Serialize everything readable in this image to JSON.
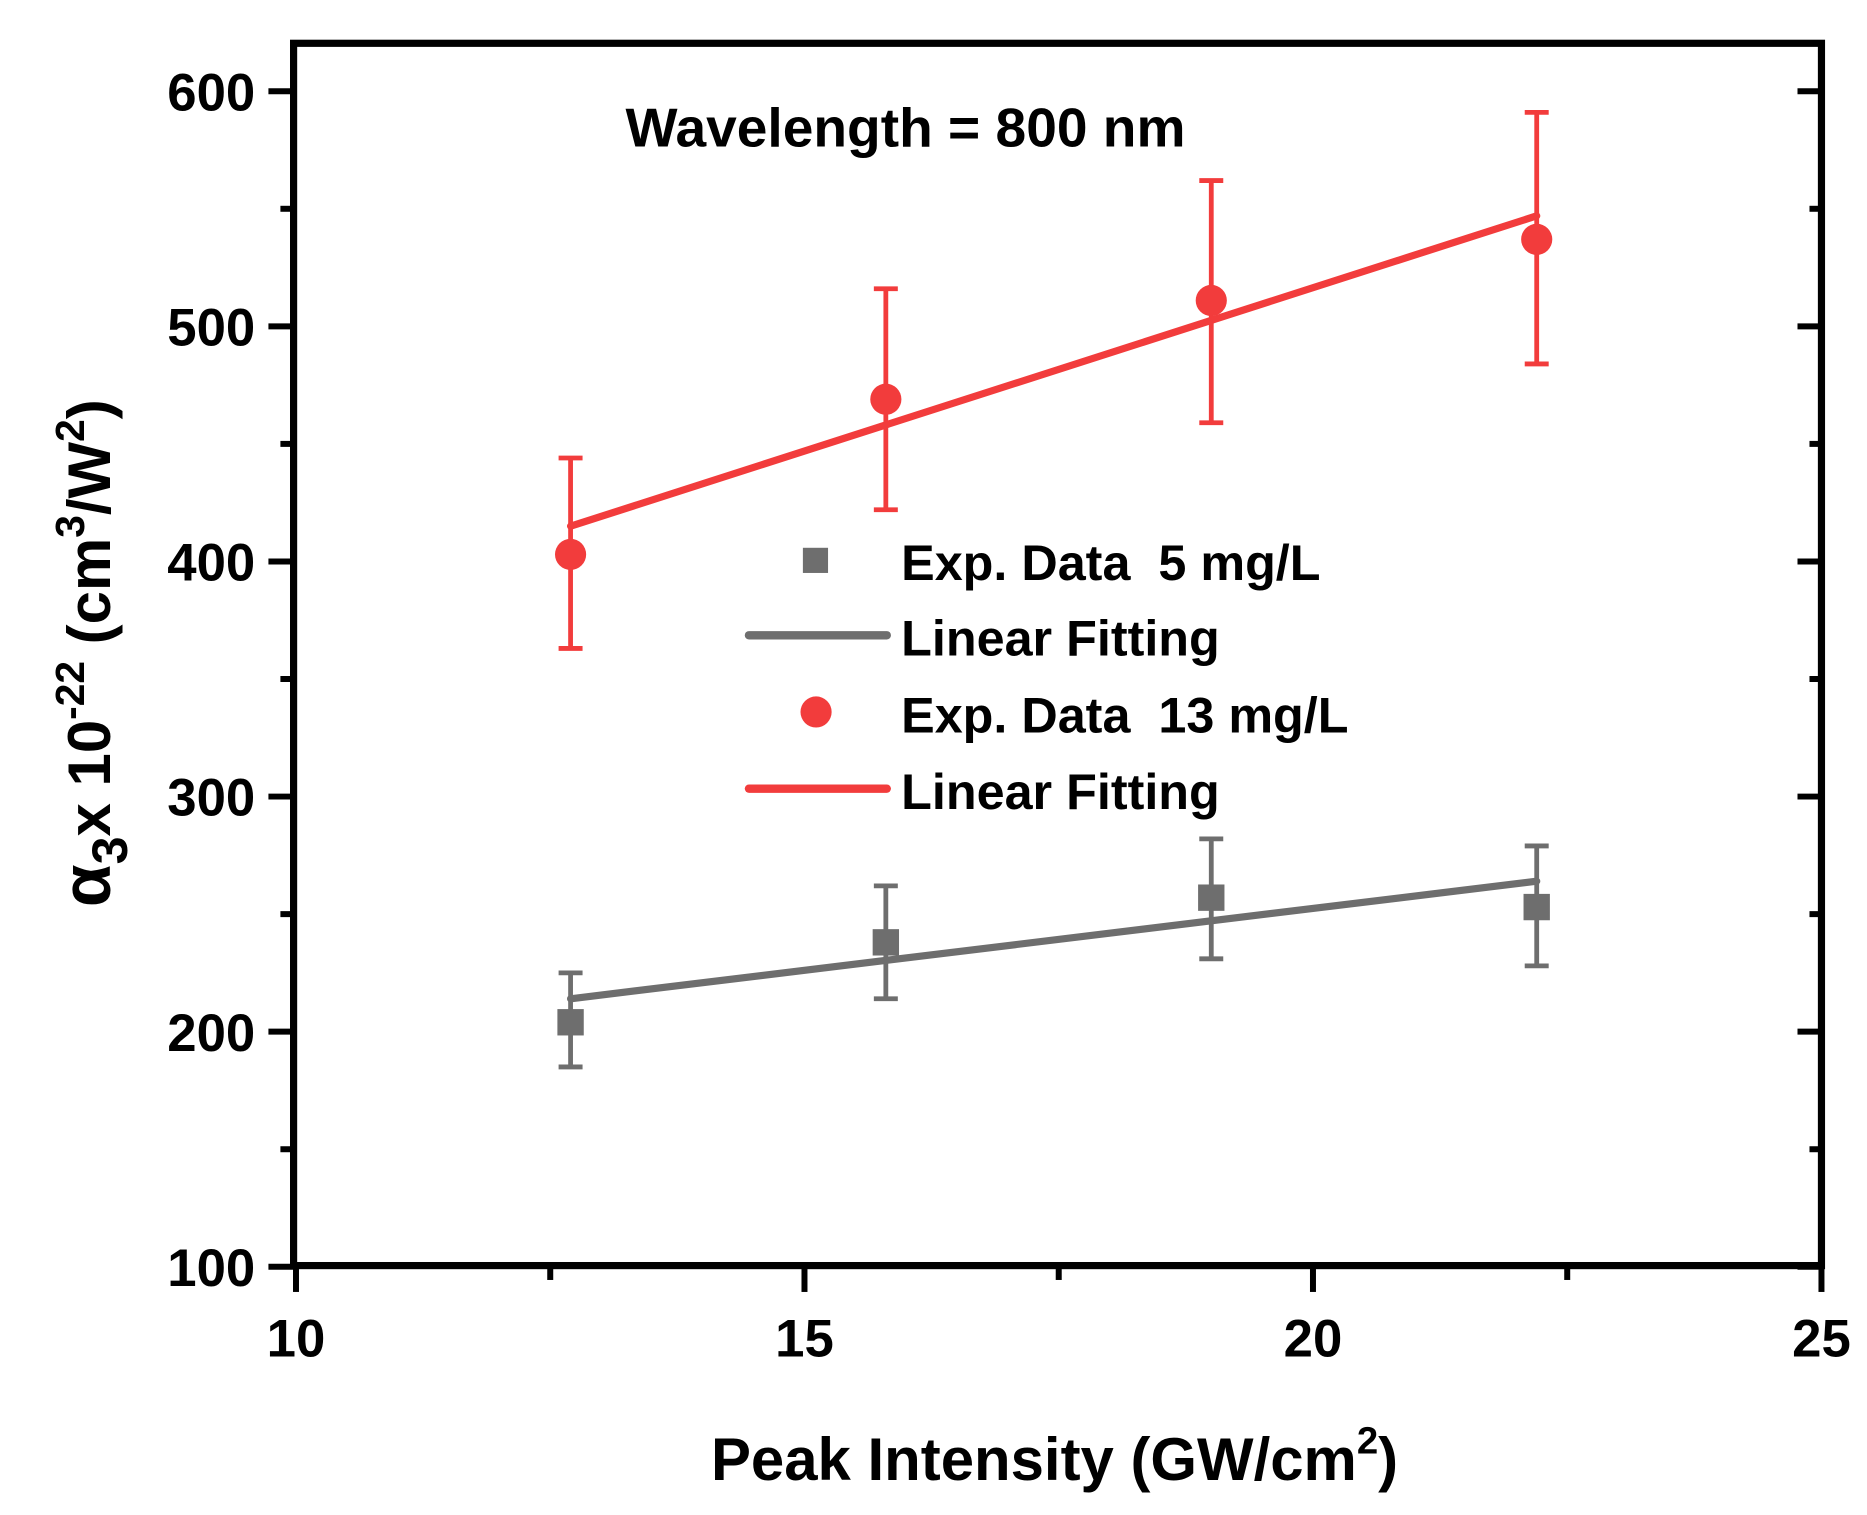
{
  "chart_data": {
    "type": "scatter",
    "title": "",
    "annotation": "Wavelength = 800 nm",
    "xlabel": "Peak Intensity (GW/cm",
    "xlabel_sup": "2",
    "xlabel_end": ")",
    "ylabel_parts": {
      "alpha": "α",
      "sub": "3",
      "mid": "x 10",
      "exp": "-22",
      "unit": " (cm",
      "unit_sup1": "3",
      "unit_mid": "/W",
      "unit_sup2": "2",
      "unit_end": ")"
    },
    "xlim": [
      10,
      25
    ],
    "ylim": [
      100,
      600
    ],
    "xticks": [
      "10",
      "15",
      "20",
      "25"
    ],
    "yticks": [
      "100",
      "200",
      "300",
      "400",
      "500",
      "600"
    ],
    "grid": false,
    "legend_position": "center",
    "colors": {
      "gray": "#6e6e6e",
      "red": "#f23c3c"
    },
    "series": [
      {
        "name": "Exp. Data  5 mg/L",
        "kind": "points",
        "marker": "square",
        "color": "#6e6e6e",
        "x": [
          12.7,
          15.8,
          19.0,
          22.2
        ],
        "y": [
          204,
          238,
          257,
          253
        ],
        "err_low": [
          185,
          214,
          231,
          228
        ],
        "err_high": [
          225,
          262,
          282,
          279
        ]
      },
      {
        "name": "Linear Fitting",
        "kind": "line",
        "color": "#6e6e6e",
        "x": [
          12.7,
          22.2
        ],
        "y": [
          214,
          264
        ]
      },
      {
        "name": "Exp. Data  13 mg/L",
        "kind": "points",
        "marker": "circle",
        "color": "#f23c3c",
        "x": [
          12.7,
          15.8,
          19.0,
          22.2
        ],
        "y": [
          403,
          469,
          511,
          537
        ],
        "err_low": [
          363,
          422,
          459,
          484
        ],
        "err_high": [
          444,
          516,
          562,
          591
        ]
      },
      {
        "name": "Linear Fitting",
        "kind": "line",
        "color": "#f23c3c",
        "x": [
          12.7,
          22.2
        ],
        "y": [
          415,
          547
        ]
      }
    ]
  }
}
